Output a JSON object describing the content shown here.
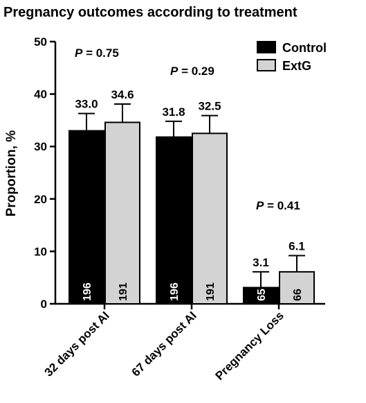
{
  "chart_data": {
    "type": "bar",
    "title": "Pregnancy outcomes according to treatment",
    "ylabel": "Proportion, %",
    "xlabel": "",
    "ylim": [
      0,
      50
    ],
    "yticks": [
      "0",
      "10",
      "20",
      "30",
      "40",
      "50"
    ],
    "categories": [
      "32 days post AI",
      "67 days post AI",
      "Pregnancy Loss"
    ],
    "series": [
      {
        "name": "Control",
        "color": "#000000",
        "values": [
          33.0,
          31.8,
          3.1
        ],
        "labels": [
          "33.0",
          "31.8",
          "3.1"
        ],
        "errors": [
          3.3,
          3.0,
          3.0
        ],
        "n": [
          "196",
          "196",
          "65"
        ]
      },
      {
        "name": "ExtG",
        "color": "#d3d3d3",
        "values": [
          34.6,
          32.5,
          6.1
        ],
        "labels": [
          "34.6",
          "32.5",
          "6.1"
        ],
        "errors": [
          3.5,
          3.4,
          3.1
        ],
        "n": [
          "191",
          "191",
          "66"
        ]
      }
    ],
    "p_values": [
      "P = 0.75",
      "P = 0.29",
      "P = 0.41"
    ],
    "legend_position": "top-right",
    "grid": false
  }
}
